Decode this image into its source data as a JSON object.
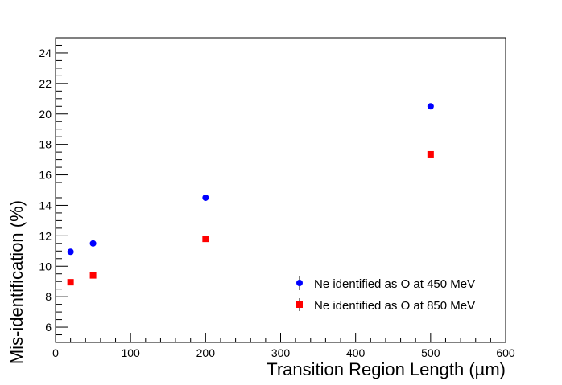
{
  "chart_data": {
    "type": "scatter",
    "title": "",
    "xlabel": "Transition Region Length (µm)",
    "ylabel": "Mis-identification (%)",
    "xlim": [
      0,
      600
    ],
    "ylim": [
      5,
      25
    ],
    "x_major_ticks": [
      0,
      100,
      200,
      300,
      400,
      500,
      600
    ],
    "y_major_ticks": [
      6,
      8,
      10,
      12,
      14,
      16,
      18,
      20,
      22,
      24
    ],
    "grid": false,
    "legend_position": "bottom-right",
    "series": [
      {
        "name": "Ne identified as O at 450 MeV",
        "marker": "circle",
        "color": "#0000ff",
        "x": [
          20,
          50,
          200,
          500
        ],
        "y": [
          10.95,
          11.5,
          14.5,
          20.5
        ]
      },
      {
        "name": "Ne identified as O at 850 MeV",
        "marker": "square",
        "color": "#ff0000",
        "x": [
          20,
          50,
          200,
          500
        ],
        "y": [
          8.95,
          9.4,
          11.8,
          17.35
        ]
      }
    ]
  }
}
